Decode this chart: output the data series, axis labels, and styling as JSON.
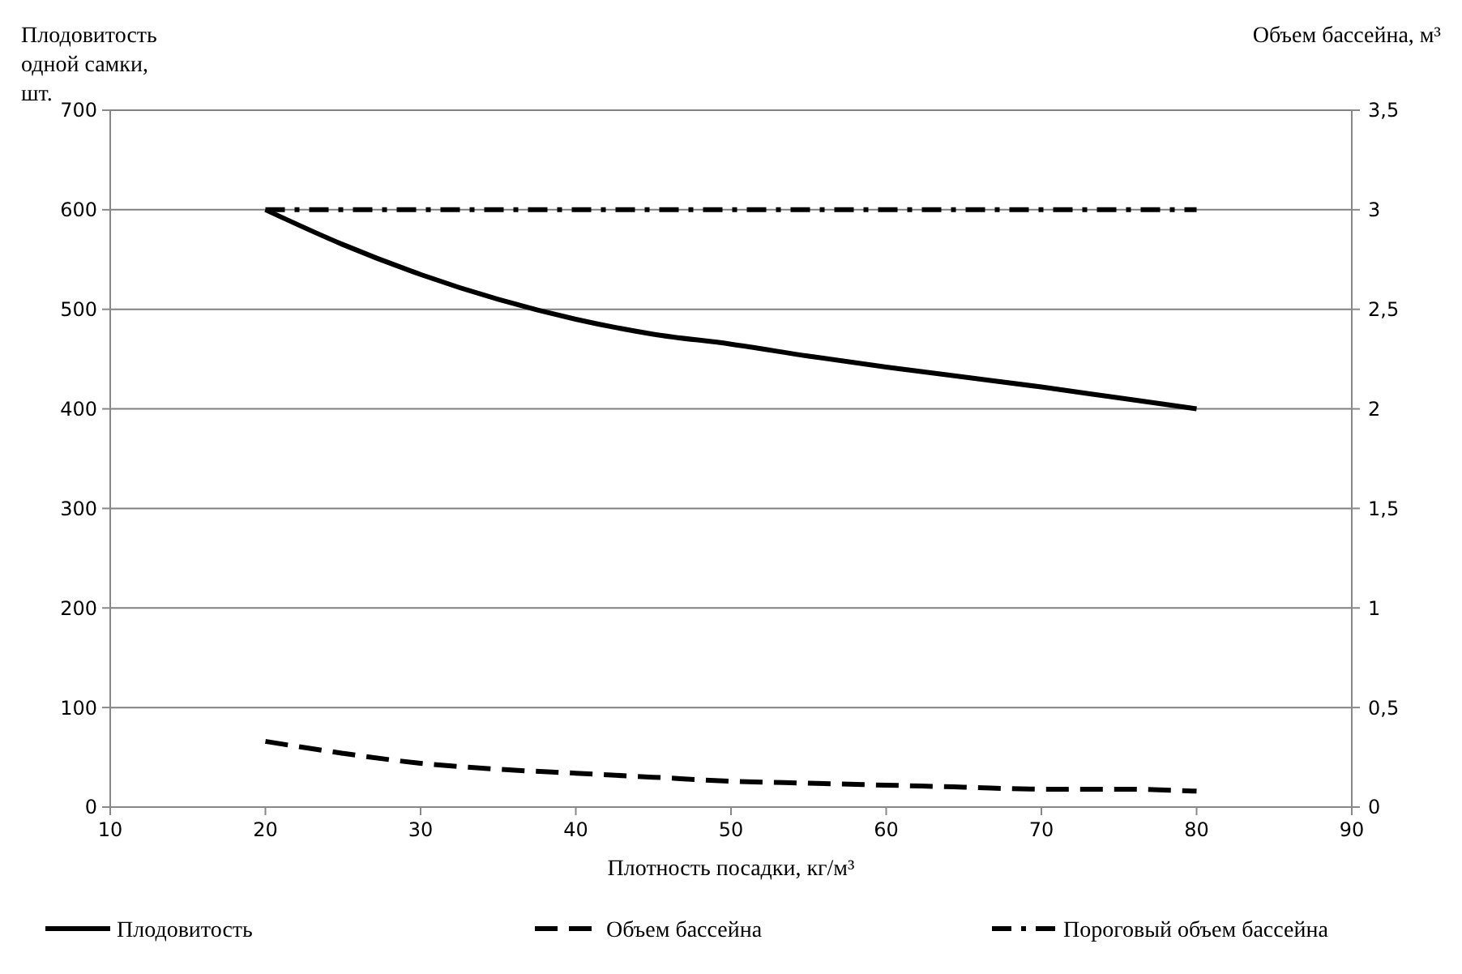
{
  "chart_data": {
    "type": "line",
    "xlabel": "Плотность посадки, кг/м³",
    "ylabel": "Плодовитость одной самки, шт.",
    "y2label": "Объем бассейна, м³",
    "xlim": [
      10,
      90
    ],
    "xticks": [
      10,
      20,
      30,
      40,
      50,
      60,
      70,
      80,
      90
    ],
    "ylim": [
      0,
      700
    ],
    "yticks": [
      0,
      100,
      200,
      300,
      400,
      500,
      600,
      700
    ],
    "y2lim": [
      0,
      3.5
    ],
    "y2ticks": [
      0,
      {
        "value": 0.5,
        "label": "0,5"
      },
      1,
      {
        "value": 1.5,
        "label": "1,5"
      },
      2,
      {
        "value": 2.5,
        "label": "2,5"
      },
      3,
      {
        "value": 3.5,
        "label": "3,5"
      }
    ],
    "x": [
      20,
      25,
      30,
      35,
      40,
      45,
      50,
      55,
      60,
      65,
      70,
      75,
      80
    ],
    "grid": "y",
    "legend": "bottom",
    "marker": "none",
    "series": [
      {
        "name": "Плодовитость",
        "color": "#000000",
        "line_style": "solid",
        "values": [
          600,
          565,
          535,
          510,
          490,
          475,
          465,
          453,
          442,
          432,
          422,
          411,
          400
        ]
      },
      {
        "name": "Объем бассейна",
        "color": "#000000",
        "line_style": "dashed",
        "axis": "y2",
        "values": [
          0.33,
          0.27,
          0.22,
          0.19,
          0.17,
          0.15,
          0.13,
          0.12,
          0.11,
          0.1,
          0.09,
          0.09,
          0.08
        ]
      },
      {
        "name": "Пороговый объем бассейна",
        "color": "#000000",
        "line_style": "dashdot",
        "axis": "y2",
        "values": [
          3,
          3,
          3,
          3,
          3,
          3,
          3,
          3,
          3,
          3,
          3,
          3,
          3
        ]
      }
    ]
  }
}
